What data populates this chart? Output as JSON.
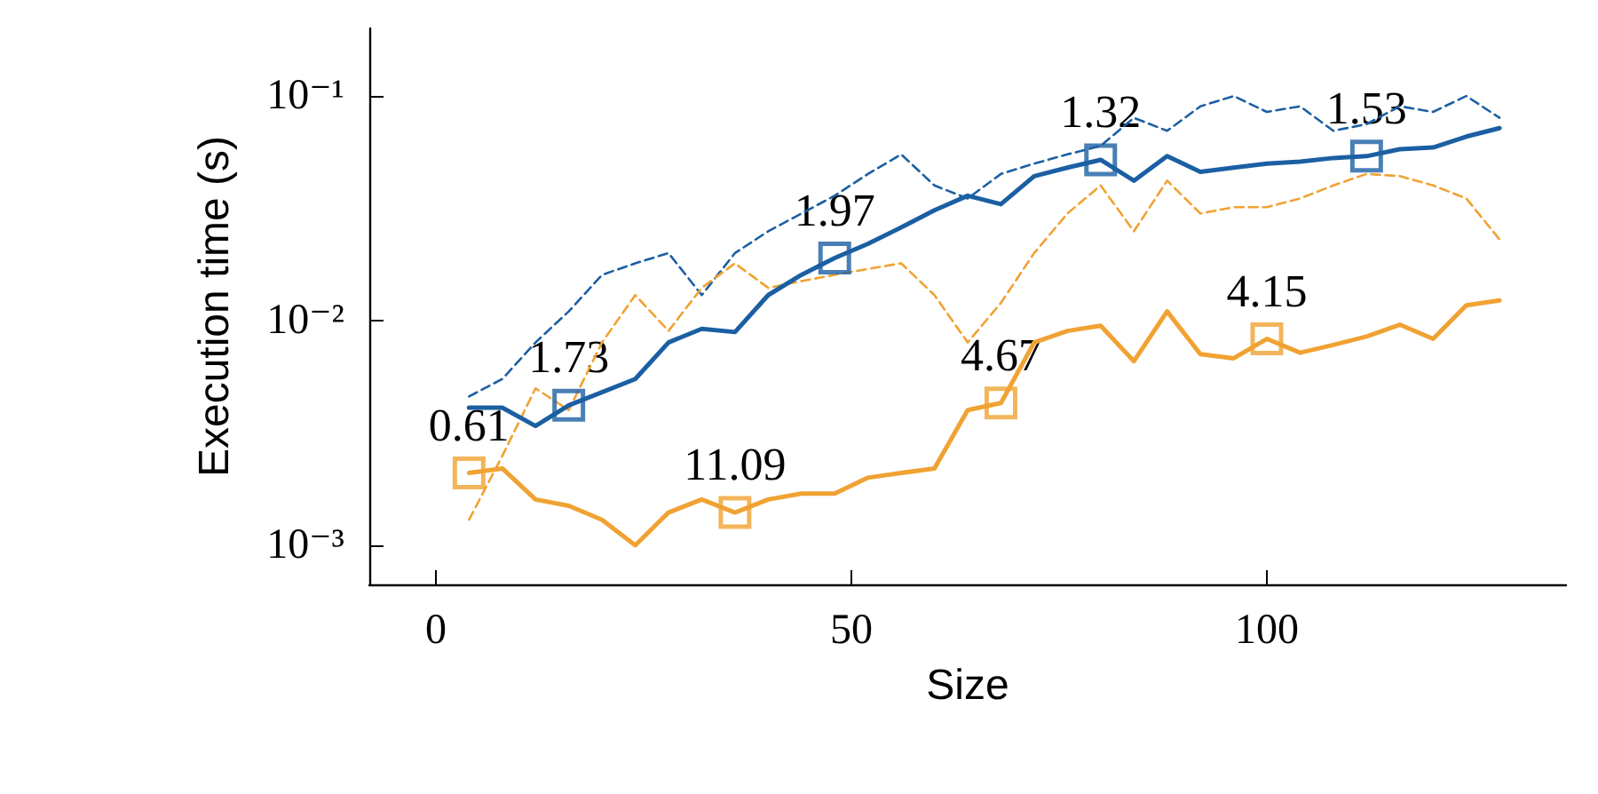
{
  "chart_data": {
    "type": "line",
    "xlabel": "Size",
    "ylabel": "Execution time (s)",
    "log": "y",
    "grid": false,
    "marker": "none",
    "x": [
      4,
      8,
      12,
      16,
      20,
      24,
      28,
      32,
      36,
      40,
      44,
      48,
      52,
      56,
      60,
      64,
      68,
      72,
      76,
      80,
      84,
      88,
      92,
      96,
      100,
      104,
      108,
      112,
      116,
      120,
      124,
      128
    ],
    "xlim": [
      -8,
      136
    ],
    "xticks": [
      0,
      50,
      100
    ],
    "ylim": [
      0.00067,
      0.2
    ],
    "yticks": [
      {
        "value": 0.001,
        "label": "10⁻³"
      },
      {
        "value": 0.01,
        "label": "10⁻²"
      },
      {
        "value": 0.1,
        "label": "10⁻¹"
      }
    ],
    "annotations": [
      {
        "text": "1.73",
        "x": 16,
        "y": 0.0042
      },
      {
        "text": "1.97",
        "x": 48,
        "y": 0.019
      },
      {
        "text": "1.32",
        "x": 80,
        "y": 0.052
      },
      {
        "text": "1.53",
        "x": 112,
        "y": 0.054
      },
      {
        "text": "0.61",
        "x": 4,
        "y": 0.0021
      },
      {
        "text": "11.09",
        "x": 36,
        "y": 0.0014
      },
      {
        "text": "4.67",
        "x": 68,
        "y": 0.0043
      },
      {
        "text": "4.15",
        "x": 100,
        "y": 0.0083
      }
    ],
    "series": [
      {
        "color": "#1b5fa3",
        "line_style": "dashed",
        "values": [
          0.0046,
          0.0055,
          0.008,
          0.011,
          0.016,
          0.018,
          0.02,
          0.013,
          0.02,
          0.025,
          0.03,
          0.036,
          0.045,
          0.055,
          0.04,
          0.035,
          0.045,
          0.05,
          0.055,
          0.06,
          0.08,
          0.07,
          0.09,
          0.1,
          0.085,
          0.09,
          0.07,
          0.075,
          0.09,
          0.085,
          0.1,
          0.08
        ]
      },
      {
        "color": "#f0a232",
        "line_style": "dashed",
        "values": [
          0.0013,
          0.0025,
          0.005,
          0.004,
          0.008,
          0.013,
          0.009,
          0.014,
          0.018,
          0.014,
          0.015,
          0.016,
          0.017,
          0.018,
          0.013,
          0.008,
          0.012,
          0.02,
          0.03,
          0.04,
          0.025,
          0.042,
          0.03,
          0.032,
          0.032,
          0.035,
          0.04,
          0.045,
          0.044,
          0.04,
          0.035,
          0.023
        ]
      },
      {
        "color": "#1b5fa3",
        "line_style": "solid",
        "values": [
          0.0041,
          0.0041,
          0.0034,
          0.0042,
          0.0048,
          0.0055,
          0.008,
          0.0092,
          0.0089,
          0.013,
          0.016,
          0.019,
          0.022,
          0.026,
          0.031,
          0.036,
          0.033,
          0.044,
          0.048,
          0.052,
          0.042,
          0.054,
          0.046,
          0.048,
          0.05,
          0.051,
          0.053,
          0.054,
          0.058,
          0.059,
          0.066,
          0.072
        ]
      },
      {
        "color": "#f0a232",
        "line_style": "solid",
        "values": [
          0.0021,
          0.0022,
          0.0016,
          0.0015,
          0.0013,
          0.001,
          0.0014,
          0.0016,
          0.0014,
          0.0016,
          0.0017,
          0.0017,
          0.002,
          0.0021,
          0.0022,
          0.004,
          0.0043,
          0.008,
          0.009,
          0.0095,
          0.0066,
          0.011,
          0.0071,
          0.0068,
          0.0083,
          0.0072,
          0.0078,
          0.0085,
          0.0096,
          0.0083,
          0.0117,
          0.0123
        ]
      },
      {
        "type": "scatter",
        "marker": "square",
        "color": "#1b5fa3",
        "x": [
          16,
          48,
          80,
          112
        ],
        "values": [
          0.0042,
          0.019,
          0.052,
          0.054
        ]
      },
      {
        "type": "scatter",
        "marker": "square",
        "color": "#f0a232",
        "x": [
          4,
          36,
          68,
          100
        ],
        "values": [
          0.0021,
          0.0014,
          0.0043,
          0.0083
        ]
      }
    ]
  }
}
